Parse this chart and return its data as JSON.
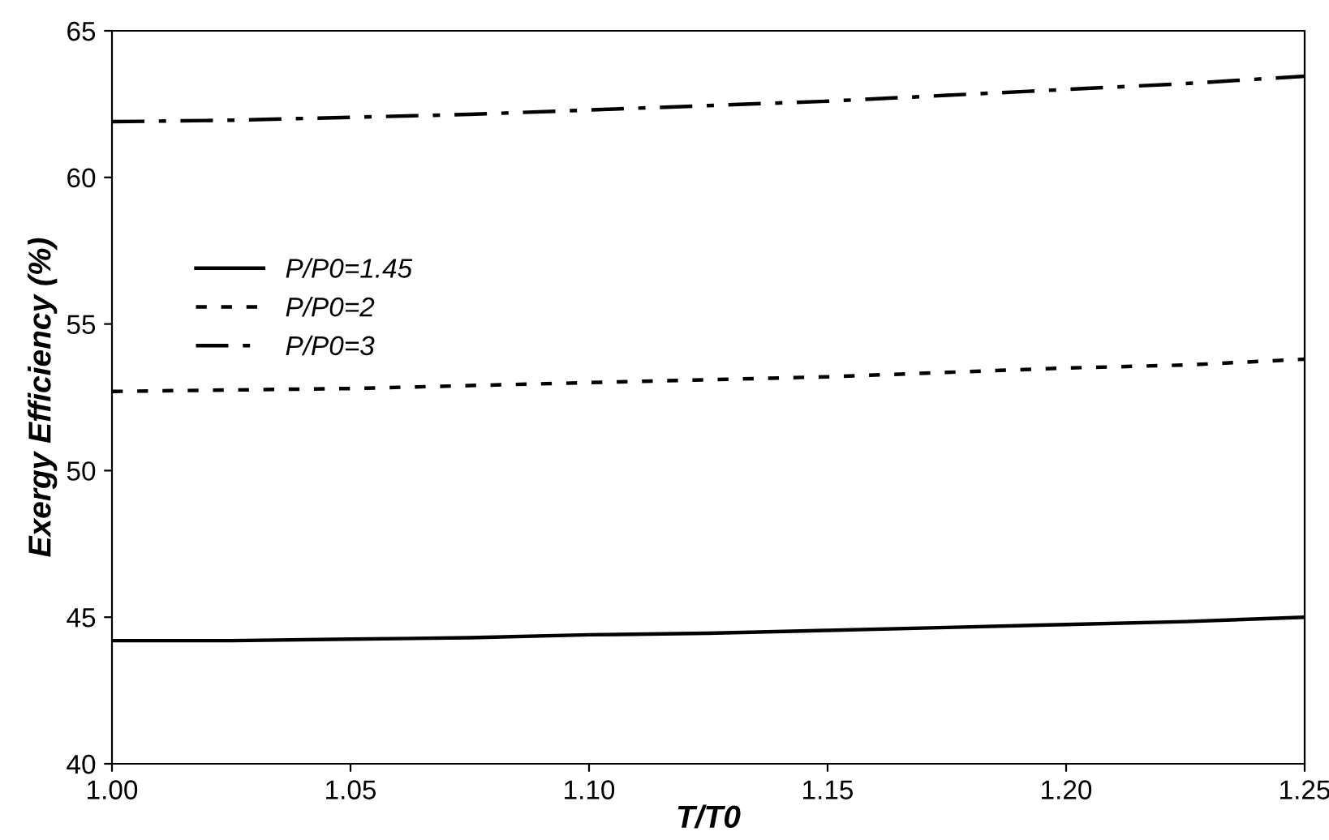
{
  "chart_data": {
    "type": "line",
    "xlabel": "T/T0",
    "ylabel": "Exergy Efficiency (%)",
    "x": [
      1.0,
      1.025,
      1.05,
      1.075,
      1.1,
      1.125,
      1.15,
      1.175,
      1.2,
      1.225,
      1.25
    ],
    "series": [
      {
        "name": "P/P0=1.45",
        "color": "#000000",
        "line_style": "solid",
        "values": [
          44.2,
          44.2,
          44.25,
          44.3,
          44.4,
          44.45,
          44.55,
          44.65,
          44.75,
          44.85,
          45.0
        ]
      },
      {
        "name": "P/P0=2",
        "color": "#000000",
        "line_style": "dotted",
        "values": [
          52.7,
          52.75,
          52.8,
          52.9,
          53.0,
          53.1,
          53.2,
          53.35,
          53.5,
          53.6,
          53.8
        ]
      },
      {
        "name": "P/P0=3",
        "color": "#000000",
        "line_style": "dashdot",
        "values": [
          61.9,
          61.95,
          62.05,
          62.15,
          62.3,
          62.45,
          62.6,
          62.8,
          63.0,
          63.2,
          63.45
        ]
      }
    ],
    "xlim": [
      1.0,
      1.25
    ],
    "xticks": [
      {
        "value": 1.0,
        "label": "1.00"
      },
      {
        "value": 1.05,
        "label": "1.05"
      },
      {
        "value": 1.1,
        "label": "1.10"
      },
      {
        "value": 1.15,
        "label": "1.15"
      },
      {
        "value": 1.2,
        "label": "1.20"
      },
      {
        "value": 1.25,
        "label": "1.25"
      }
    ],
    "ylim": [
      40,
      65
    ],
    "yticks": [
      40,
      45,
      50,
      55,
      60,
      65
    ],
    "grid": false,
    "legend": "left",
    "marker": "none"
  }
}
